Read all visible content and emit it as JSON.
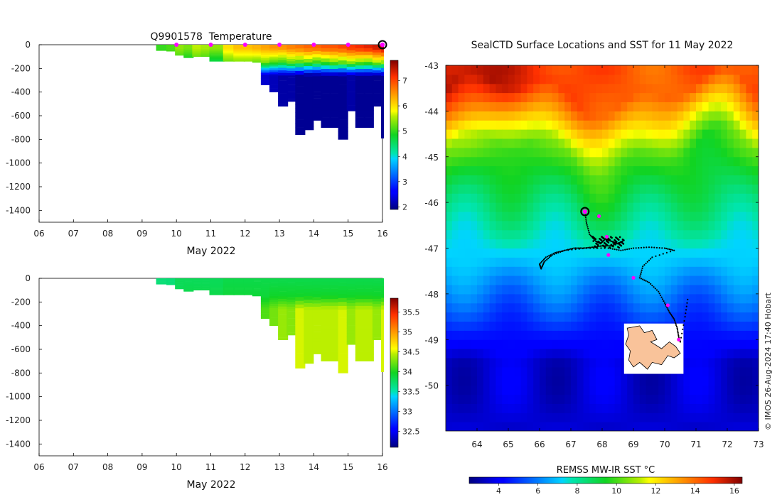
{
  "colors": {
    "magenta": "#ff00ff",
    "track": "#000000",
    "island": "#f9c39a"
  },
  "credit": "© IMOS 26-Aug-2024 17:40 Hobart",
  "chart_data": [
    {
      "id": "temperature-section",
      "type": "heatmap",
      "title": "Q9901578  Temperature",
      "xlabel": "May 2022",
      "ylabel": "",
      "xlim": [
        6,
        16
      ],
      "ylim": [
        -1500,
        0
      ],
      "x_ticks": [
        "06",
        "07",
        "08",
        "09",
        "10",
        "11",
        "12",
        "13",
        "14",
        "15",
        "16"
      ],
      "y_ticks": [
        0,
        -200,
        -400,
        -600,
        -800,
        -1000,
        -1200,
        -1400
      ],
      "colorbar": {
        "min": 1.9,
        "max": 7.8,
        "ticks": [
          2,
          3,
          4,
          5,
          6,
          7
        ]
      },
      "surface_markers_day": [
        10,
        11,
        12,
        13,
        14,
        15
      ],
      "current_position_day": 16,
      "profiles": [
        {
          "day": 9.45,
          "depth": 50,
          "surface": 5.0,
          "mixed": 5.0,
          "deep": 5.0
        },
        {
          "day": 9.75,
          "depth": 55,
          "surface": 5.1,
          "mixed": 5.0,
          "deep": 5.0
        },
        {
          "day": 10.0,
          "depth": 90,
          "surface": 5.4,
          "mixed": 4.9,
          "deep": 4.4
        },
        {
          "day": 10.25,
          "depth": 110,
          "surface": 5.3,
          "mixed": 4.7,
          "deep": 3.9
        },
        {
          "day": 10.5,
          "depth": 100,
          "surface": 5.6,
          "mixed": 5.0,
          "deep": 4.2
        },
        {
          "day": 10.75,
          "depth": 100,
          "surface": 5.5,
          "mixed": 4.9,
          "deep": 4.0
        },
        {
          "day": 11.0,
          "depth": 140,
          "surface": 5.4,
          "mixed": 4.6,
          "deep": 3.5
        },
        {
          "day": 11.4,
          "depth": 140,
          "surface": 6.0,
          "mixed": 5.2,
          "deep": 4.4
        },
        {
          "day": 11.7,
          "depth": 140,
          "surface": 6.2,
          "mixed": 5.3,
          "deep": 4.5
        },
        {
          "day": 12.0,
          "depth": 140,
          "surface": 6.2,
          "mixed": 5.3,
          "deep": 4.4
        },
        {
          "day": 12.25,
          "depth": 150,
          "surface": 6.3,
          "mixed": 5.2,
          "deep": 4.4
        },
        {
          "day": 12.5,
          "depth": 340,
          "surface": 6.4,
          "mixed": 5.3,
          "deep": 2.3
        },
        {
          "day": 12.75,
          "depth": 400,
          "surface": 6.5,
          "mixed": 5.1,
          "deep": 2.2
        },
        {
          "day": 13.0,
          "depth": 520,
          "surface": 6.5,
          "mixed": 5.0,
          "deep": 2.1
        },
        {
          "day": 13.25,
          "depth": 480,
          "surface": 6.6,
          "mixed": 5.2,
          "deep": 2.1
        },
        {
          "day": 13.5,
          "depth": 760,
          "surface": 6.7,
          "mixed": 5.1,
          "deep": 2.0
        },
        {
          "day": 13.75,
          "depth": 720,
          "surface": 6.8,
          "mixed": 5.2,
          "deep": 2.0
        },
        {
          "day": 14.0,
          "depth": 640,
          "surface": 6.8,
          "mixed": 5.0,
          "deep": 2.0
        },
        {
          "day": 14.25,
          "depth": 700,
          "surface": 6.9,
          "mixed": 5.1,
          "deep": 2.0
        },
        {
          "day": 14.5,
          "depth": 700,
          "surface": 6.9,
          "mixed": 5.3,
          "deep": 2.0
        },
        {
          "day": 14.75,
          "depth": 800,
          "surface": 7.0,
          "mixed": 5.2,
          "deep": 2.0
        },
        {
          "day": 15.0,
          "depth": 560,
          "surface": 7.1,
          "mixed": 5.4,
          "deep": 2.1
        },
        {
          "day": 15.25,
          "depth": 700,
          "surface": 7.2,
          "mixed": 5.3,
          "deep": 2.0
        },
        {
          "day": 15.5,
          "depth": 700,
          "surface": 7.3,
          "mixed": 5.2,
          "deep": 2.0
        },
        {
          "day": 15.75,
          "depth": 520,
          "surface": 7.4,
          "mixed": 5.5,
          "deep": 2.0
        },
        {
          "day": 16.0,
          "depth": 790,
          "surface": 7.6,
          "mixed": 5.4,
          "deep": 2.0
        }
      ]
    },
    {
      "id": "salinity-section",
      "type": "heatmap",
      "title": "",
      "xlabel": "May 2022",
      "ylabel": "",
      "xlim": [
        6,
        16
      ],
      "ylim": [
        -1500,
        0
      ],
      "x_ticks": [
        "06",
        "07",
        "08",
        "09",
        "10",
        "11",
        "12",
        "13",
        "14",
        "15",
        "16"
      ],
      "y_ticks": [
        0,
        -200,
        -400,
        -600,
        -800,
        -1000,
        -1200,
        -1400
      ],
      "colorbar": {
        "min": 32.1,
        "max": 35.85,
        "ticks": [
          32.5,
          33,
          33.5,
          34,
          34.5,
          35,
          35.5
        ]
      },
      "profiles": [
        {
          "day": 9.45,
          "depth": 50,
          "surface": 33.7,
          "mixed": 33.7,
          "deep": 33.7
        },
        {
          "day": 9.75,
          "depth": 55,
          "surface": 33.7,
          "mixed": 33.7,
          "deep": 33.7
        },
        {
          "day": 10.0,
          "depth": 90,
          "surface": 33.8,
          "mixed": 33.8,
          "deep": 33.9
        },
        {
          "day": 10.25,
          "depth": 110,
          "surface": 33.8,
          "mixed": 33.85,
          "deep": 33.9
        },
        {
          "day": 10.5,
          "depth": 100,
          "surface": 33.8,
          "mixed": 33.85,
          "deep": 33.9
        },
        {
          "day": 10.75,
          "depth": 100,
          "surface": 33.8,
          "mixed": 33.85,
          "deep": 33.9
        },
        {
          "day": 11.0,
          "depth": 140,
          "surface": 33.8,
          "mixed": 33.85,
          "deep": 33.95
        },
        {
          "day": 11.4,
          "depth": 140,
          "surface": 33.85,
          "mixed": 33.9,
          "deep": 33.95
        },
        {
          "day": 11.7,
          "depth": 140,
          "surface": 33.85,
          "mixed": 33.9,
          "deep": 33.95
        },
        {
          "day": 12.0,
          "depth": 140,
          "surface": 33.85,
          "mixed": 33.9,
          "deep": 33.95
        },
        {
          "day": 12.25,
          "depth": 150,
          "surface": 33.85,
          "mixed": 33.9,
          "deep": 33.95
        },
        {
          "day": 12.5,
          "depth": 340,
          "surface": 33.85,
          "mixed": 33.9,
          "deep": 34.15
        },
        {
          "day": 12.75,
          "depth": 400,
          "surface": 33.85,
          "mixed": 33.95,
          "deep": 34.25
        },
        {
          "day": 13.0,
          "depth": 520,
          "surface": 33.85,
          "mixed": 33.95,
          "deep": 34.35
        },
        {
          "day": 13.25,
          "depth": 480,
          "surface": 33.85,
          "mixed": 33.95,
          "deep": 34.3
        },
        {
          "day": 13.5,
          "depth": 760,
          "surface": 33.85,
          "mixed": 33.95,
          "deep": 34.5
        },
        {
          "day": 13.75,
          "depth": 720,
          "surface": 33.85,
          "mixed": 33.95,
          "deep": 34.45
        },
        {
          "day": 14.0,
          "depth": 640,
          "surface": 33.85,
          "mixed": 33.95,
          "deep": 34.45
        },
        {
          "day": 14.25,
          "depth": 700,
          "surface": 33.85,
          "mixed": 33.95,
          "deep": 34.45
        },
        {
          "day": 14.5,
          "depth": 700,
          "surface": 33.85,
          "mixed": 33.95,
          "deep": 34.45
        },
        {
          "day": 14.75,
          "depth": 800,
          "surface": 33.85,
          "mixed": 33.95,
          "deep": 34.5
        },
        {
          "day": 15.0,
          "depth": 560,
          "surface": 33.85,
          "mixed": 33.95,
          "deep": 34.35
        },
        {
          "day": 15.25,
          "depth": 700,
          "surface": 33.85,
          "mixed": 33.95,
          "deep": 34.45
        },
        {
          "day": 15.5,
          "depth": 700,
          "surface": 33.85,
          "mixed": 33.95,
          "deep": 34.45
        },
        {
          "day": 15.75,
          "depth": 520,
          "surface": 33.85,
          "mixed": 33.95,
          "deep": 34.35
        },
        {
          "day": 16.0,
          "depth": 790,
          "surface": 33.85,
          "mixed": 33.95,
          "deep": 34.5
        }
      ]
    },
    {
      "id": "sst-map",
      "type": "heatmap",
      "title": "SealCTD Surface Locations and SST for 11 May 2022",
      "xlabel": "",
      "ylabel": "",
      "xlim": [
        63,
        73
      ],
      "ylim": [
        -51,
        -43
      ],
      "x_ticks": [
        64,
        65,
        66,
        67,
        68,
        69,
        70,
        71,
        72,
        73
      ],
      "y_ticks": [
        -43,
        -44,
        -45,
        -46,
        -47,
        -48,
        -49,
        -50
      ],
      "colorbar": {
        "label": "REMSS MW-IR SST °C",
        "min": 2.5,
        "max": 16.4,
        "ticks": [
          4,
          6,
          8,
          10,
          12,
          14,
          16
        ]
      },
      "daily_positions": [
        [
          67.9,
          -46.3
        ],
        [
          68.15,
          -46.75
        ],
        [
          68.2,
          -47.15
        ],
        [
          69.0,
          -47.65
        ],
        [
          70.1,
          -48.25
        ],
        [
          70.45,
          -49.0
        ]
      ],
      "current_position": [
        67.45,
        -46.2
      ],
      "track": [
        [
          67.45,
          -46.2
        ],
        [
          67.5,
          -46.45
        ],
        [
          67.6,
          -46.7
        ],
        [
          67.8,
          -46.85
        ],
        [
          67.95,
          -46.9
        ],
        [
          68.1,
          -46.8
        ],
        [
          68.3,
          -46.85
        ],
        [
          68.5,
          -46.9
        ],
        [
          68.65,
          -46.85
        ],
        [
          68.3,
          -46.95
        ],
        [
          68.0,
          -46.95
        ],
        [
          67.7,
          -46.98
        ],
        [
          67.4,
          -47.0
        ],
        [
          67.1,
          -47.0
        ],
        [
          66.8,
          -47.05
        ],
        [
          66.5,
          -47.1
        ],
        [
          66.2,
          -47.2
        ],
        [
          66.0,
          -47.35
        ],
        [
          66.05,
          -47.45
        ],
        [
          66.15,
          -47.3
        ],
        [
          66.4,
          -47.15
        ],
        [
          66.8,
          -47.05
        ],
        [
          67.5,
          -47.0
        ],
        [
          68.2,
          -47.0
        ],
        [
          68.6,
          -47.05
        ],
        [
          69.0,
          -47.0
        ],
        [
          69.5,
          -46.98
        ],
        [
          70.0,
          -47.0
        ],
        [
          70.3,
          -47.05
        ],
        [
          69.6,
          -47.2
        ],
        [
          69.3,
          -47.4
        ],
        [
          69.2,
          -47.65
        ],
        [
          69.5,
          -47.75
        ],
        [
          69.8,
          -47.95
        ],
        [
          70.0,
          -48.2
        ],
        [
          70.15,
          -48.4
        ],
        [
          70.3,
          -48.55
        ],
        [
          70.4,
          -48.75
        ],
        [
          70.45,
          -48.95
        ],
        [
          70.5,
          -49.05
        ],
        [
          70.65,
          -48.5
        ],
        [
          70.75,
          -48.05
        ]
      ],
      "island_outline": [
        [
          68.8,
          -48.75
        ],
        [
          69.2,
          -48.7
        ],
        [
          69.35,
          -48.85
        ],
        [
          69.6,
          -48.8
        ],
        [
          69.75,
          -49.0
        ],
        [
          69.55,
          -49.05
        ],
        [
          69.9,
          -49.2
        ],
        [
          70.15,
          -49.05
        ],
        [
          70.35,
          -49.15
        ],
        [
          70.5,
          -49.3
        ],
        [
          70.3,
          -49.4
        ],
        [
          70.1,
          -49.35
        ],
        [
          69.9,
          -49.55
        ],
        [
          69.6,
          -49.5
        ],
        [
          69.45,
          -49.65
        ],
        [
          69.2,
          -49.5
        ],
        [
          69.0,
          -49.6
        ],
        [
          68.85,
          -49.45
        ],
        [
          68.9,
          -49.25
        ],
        [
          68.75,
          -49.1
        ],
        [
          68.85,
          -48.9
        ]
      ]
    }
  ]
}
